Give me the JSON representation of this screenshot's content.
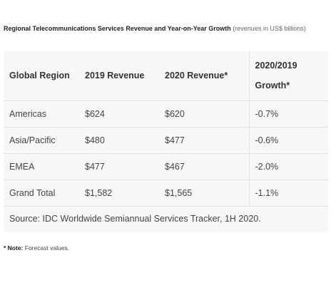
{
  "title": {
    "main": "Regional Telecommunications Services Revenue and Year-on-Year Growth",
    "sub": "(revenues in US$ billions)"
  },
  "table": {
    "headers": [
      "Global Region",
      "2019 Revenue",
      "2020 Revenue*",
      "2020/2019 Growth*"
    ],
    "rows": [
      [
        "Americas",
        "$624",
        "$620",
        "-0.7%"
      ],
      [
        "Asia/Pacific",
        "$480",
        "$477",
        "-0.6%"
      ],
      [
        "EMEA",
        "$477",
        "$467",
        "-2.0%"
      ],
      [
        "Grand Total",
        "$1,582",
        "$1,565",
        "-1.1%"
      ]
    ],
    "source": "Source: IDC Worldwide Semiannual Services Tracker, 1H 2020."
  },
  "note": {
    "label": "* Note:",
    "text": "Forecast values."
  }
}
